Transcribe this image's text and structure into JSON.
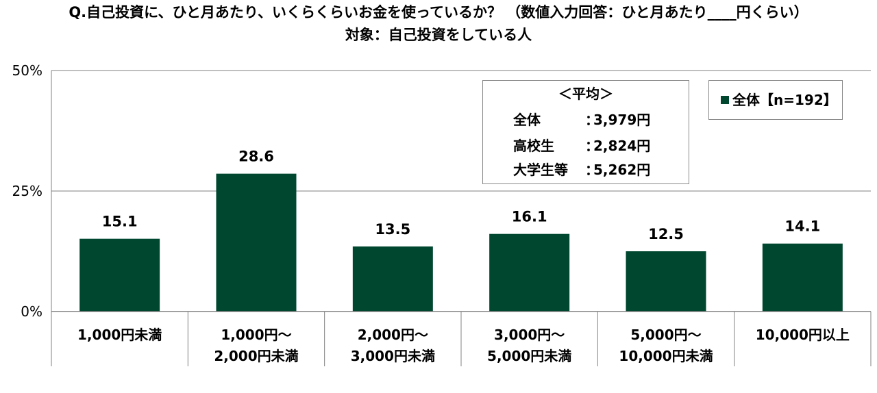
{
  "title_line1": "Q.自己投資に、ひと月あたり、いくらくらいお金を使っているか？ （数値入力回答：ひと月あたり____円くらい）",
  "title_line2": "対象：自己投資をしている人",
  "average_box": {
    "title": "＜平均＞",
    "rows": [
      {
        "label": "全体",
        "value": "3,979円"
      },
      {
        "label": "高校生",
        "value": "2,824円"
      },
      {
        "label": "大学生等",
        "value": "5,262円"
      }
    ],
    "separator": "："
  },
  "legend": {
    "label": "全体【n=192】"
  },
  "colors": {
    "bar": "#004730",
    "grid": "#7f7f7f",
    "axis": "#808080"
  },
  "chart_data": {
    "type": "bar",
    "categories": [
      [
        "1,000円未満"
      ],
      [
        "1,000円～",
        "2,000円未満"
      ],
      [
        "2,000円～",
        "3,000円未満"
      ],
      [
        "3,000円～",
        "5,000円未満"
      ],
      [
        "5,000円～",
        "10,000円未満"
      ],
      [
        "10,000円以上"
      ]
    ],
    "series": [
      {
        "name": "全体【n=192】",
        "values": [
          15.1,
          28.6,
          13.5,
          16.1,
          12.5,
          14.1
        ]
      }
    ],
    "ylim": [
      0,
      50
    ],
    "yticks": [
      0,
      25,
      50
    ],
    "ytick_labels": [
      "0%",
      "25%",
      "50%"
    ],
    "grid": true
  }
}
